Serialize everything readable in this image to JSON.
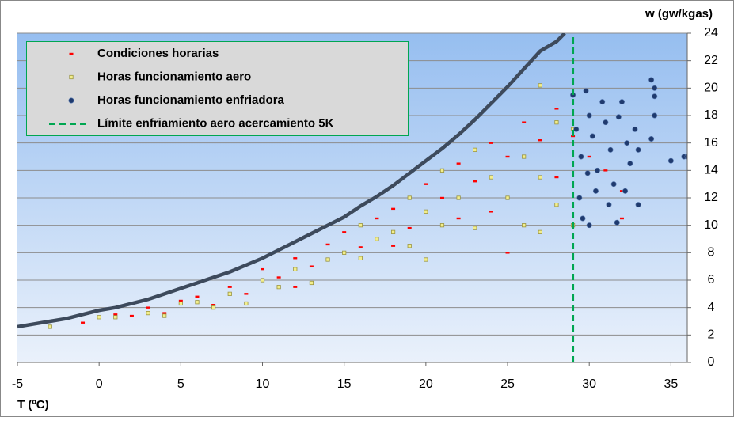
{
  "chart_data": {
    "type": "scatter",
    "x_label": "T (ºC)",
    "y_label": "w (gw/kgas)",
    "xlim": [
      -5,
      36
    ],
    "ylim": [
      0,
      24
    ],
    "xticks": [
      -5,
      0,
      5,
      10,
      15,
      20,
      25,
      30,
      35
    ],
    "yticks": [
      0,
      2,
      4,
      6,
      8,
      10,
      12,
      14,
      16,
      18,
      20,
      22,
      24
    ],
    "grid": true,
    "legend": "upper left",
    "series": [
      {
        "kind": "line",
        "color": "#3d4a5c",
        "x": [
          -5,
          -4,
          -3,
          -2,
          -1,
          0,
          1,
          2,
          3,
          4,
          5,
          6,
          7,
          8,
          9,
          10,
          11,
          12,
          13,
          14,
          15,
          16,
          17,
          18,
          19,
          20,
          21,
          22,
          23,
          24,
          25,
          26,
          27,
          28,
          28.5
        ],
        "values": [
          2.6,
          2.8,
          3.0,
          3.2,
          3.5,
          3.8,
          4.0,
          4.3,
          4.6,
          5.0,
          5.4,
          5.8,
          6.2,
          6.6,
          7.1,
          7.6,
          8.2,
          8.8,
          9.4,
          10.0,
          10.6,
          11.4,
          12.1,
          12.9,
          13.8,
          14.7,
          15.6,
          16.6,
          17.7,
          18.9,
          20.1,
          21.4,
          22.7,
          23.4,
          24
        ]
      },
      {
        "name": "Condiciones horarias",
        "marker": "dash",
        "color": "#ff0000",
        "x": [
          -1,
          1,
          2,
          3,
          4,
          5,
          6,
          7,
          8,
          9,
          10,
          11,
          12,
          13,
          14,
          15,
          16,
          17,
          18,
          19,
          20,
          21,
          22,
          23,
          24,
          25,
          26,
          27,
          28,
          28,
          29,
          30,
          31,
          32,
          32,
          22,
          25,
          18,
          12,
          24
        ],
        "values": [
          2.9,
          3.5,
          3.4,
          4.0,
          3.6,
          4.5,
          4.8,
          4.2,
          5.5,
          5.0,
          6.8,
          6.2,
          7.6,
          7.0,
          8.6,
          9.5,
          8.4,
          10.5,
          11.2,
          9.8,
          13.0,
          12.0,
          14.5,
          13.2,
          16.0,
          15.0,
          17.5,
          16.2,
          18.5,
          13.5,
          16.5,
          15.0,
          14.0,
          12.5,
          10.5,
          10.5,
          8.0,
          8.5,
          5.5,
          11.0
        ]
      },
      {
        "name": "Horas funcionamiento aero",
        "marker": "square",
        "color": "#f2ee8c",
        "x": [
          -3,
          0,
          1,
          3,
          4,
          5,
          6,
          7,
          8,
          9,
          10,
          11,
          12,
          13,
          14,
          15,
          16,
          17,
          18,
          19,
          20,
          21,
          22,
          23,
          24,
          25,
          26,
          27,
          27,
          28,
          28,
          23,
          20,
          21,
          26,
          16,
          19,
          27,
          29,
          29
        ],
        "values": [
          2.6,
          3.3,
          3.3,
          3.6,
          3.4,
          4.3,
          4.4,
          4.0,
          5.0,
          4.3,
          6.0,
          5.5,
          6.8,
          5.8,
          7.5,
          8.0,
          7.6,
          9.0,
          9.5,
          8.5,
          11.0,
          10.0,
          12.0,
          9.8,
          13.5,
          12.0,
          15.0,
          13.5,
          20.2,
          17.5,
          11.5,
          15.5,
          7.5,
          14.0,
          10.0,
          10.0,
          12.0,
          9.5,
          10.0,
          17.0
        ]
      },
      {
        "name": "Horas funcionamiento enfriadora",
        "marker": "circle",
        "color": "#1f3a6e",
        "x": [
          29,
          29.2,
          29.5,
          29.8,
          30,
          30.2,
          30.5,
          29.4,
          29.6,
          30,
          30.8,
          31,
          31.3,
          31.5,
          31.2,
          31.7,
          32,
          32.3,
          32.5,
          32.2,
          32.8,
          33,
          33,
          33.8,
          34,
          34,
          33.8,
          34,
          35,
          35.8,
          36,
          30.4,
          31.8,
          29.9
        ],
        "values": [
          19.5,
          17,
          15,
          19.8,
          18,
          16.5,
          14,
          12,
          10.5,
          10,
          19,
          17.5,
          15.5,
          13,
          11.5,
          10.2,
          19,
          16,
          14.5,
          12.5,
          17,
          15.5,
          11.5,
          20.6,
          20,
          18,
          16.3,
          19.4,
          14.7,
          15,
          15,
          12.5,
          17.9,
          13.8
        ]
      },
      {
        "name": "Límite enfriamiento aero acercamiento 5K",
        "kind": "line",
        "dash": true,
        "color": "#00a651",
        "x": [
          29,
          29
        ],
        "values": [
          0,
          24
        ]
      }
    ]
  }
}
